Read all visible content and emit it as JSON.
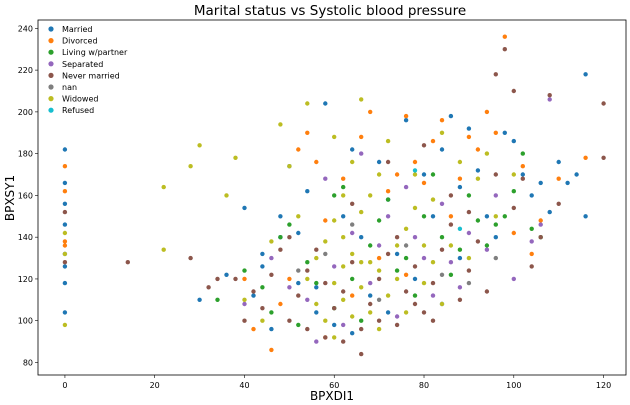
{
  "chart_data": {
    "type": "scatter",
    "title": "Marital status vs Systolic blood pressure",
    "xlabel": "BPXDI1",
    "ylabel": "BPXSY1",
    "xlim": [
      -6,
      125
    ],
    "ylim": [
      74,
      244
    ],
    "xticks": [
      0,
      20,
      40,
      60,
      80,
      100,
      120
    ],
    "yticks": [
      80,
      100,
      120,
      140,
      160,
      180,
      200,
      220,
      240
    ],
    "grid": false,
    "legend_position": "top-left",
    "series": [
      {
        "name": "Married",
        "color": "#1f77b4",
        "points": [
          [
            0,
            182
          ],
          [
            0,
            166
          ],
          [
            0,
            156
          ],
          [
            0,
            146
          ],
          [
            0,
            132
          ],
          [
            0,
            126
          ],
          [
            0,
            118
          ],
          [
            0,
            104
          ],
          [
            30,
            110
          ],
          [
            36,
            122
          ],
          [
            40,
            154
          ],
          [
            42,
            112
          ],
          [
            44,
            132
          ],
          [
            46,
            96
          ],
          [
            48,
            150
          ],
          [
            50,
            174
          ],
          [
            52,
            118
          ],
          [
            54,
            162
          ],
          [
            56,
            104
          ],
          [
            58,
            204
          ],
          [
            60,
            98
          ],
          [
            62,
            150
          ],
          [
            64,
            182
          ],
          [
            66,
            140
          ],
          [
            68,
            112
          ],
          [
            70,
            176
          ],
          [
            72,
            158
          ],
          [
            74,
            132
          ],
          [
            76,
            196
          ],
          [
            78,
            120
          ],
          [
            80,
            170
          ],
          [
            82,
            150
          ],
          [
            84,
            182
          ],
          [
            86,
            198
          ],
          [
            88,
            164
          ],
          [
            90,
            192
          ],
          [
            92,
            172
          ],
          [
            94,
            150
          ],
          [
            96,
            140
          ],
          [
            98,
            190
          ],
          [
            100,
            186
          ],
          [
            102,
            170
          ],
          [
            104,
            160
          ],
          [
            106,
            166
          ],
          [
            108,
            152
          ],
          [
            110,
            176
          ],
          [
            112,
            166
          ],
          [
            114,
            170
          ],
          [
            116,
            218
          ],
          [
            116,
            150
          ],
          [
            88,
            130
          ],
          [
            84,
            108
          ],
          [
            72,
            104
          ],
          [
            64,
            94
          ],
          [
            56,
            116
          ],
          [
            48,
            140
          ],
          [
            44,
            126
          ],
          [
            52,
            142
          ]
        ]
      },
      {
        "name": "Divorced",
        "color": "#ff7f0e",
        "points": [
          [
            0,
            174
          ],
          [
            0,
            162
          ],
          [
            0,
            138
          ],
          [
            0,
            136
          ],
          [
            40,
            120
          ],
          [
            42,
            96
          ],
          [
            46,
            86
          ],
          [
            50,
            120
          ],
          [
            52,
            182
          ],
          [
            54,
            190
          ],
          [
            56,
            176
          ],
          [
            58,
            148
          ],
          [
            62,
            168
          ],
          [
            66,
            188
          ],
          [
            68,
            200
          ],
          [
            72,
            162
          ],
          [
            74,
            170
          ],
          [
            76,
            198
          ],
          [
            78,
            176
          ],
          [
            80,
            166
          ],
          [
            82,
            186
          ],
          [
            84,
            196
          ],
          [
            86,
            150
          ],
          [
            88,
            168
          ],
          [
            90,
            188
          ],
          [
            92,
            182
          ],
          [
            94,
            200
          ],
          [
            96,
            190
          ],
          [
            98,
            236
          ],
          [
            100,
            142
          ],
          [
            102,
            174
          ],
          [
            104,
            132
          ],
          [
            106,
            148
          ],
          [
            110,
            168
          ],
          [
            116,
            178
          ],
          [
            64,
            112
          ],
          [
            70,
            130
          ],
          [
            58,
            92
          ],
          [
            48,
            108
          ],
          [
            76,
            122
          ]
        ]
      },
      {
        "name": "Living w/partner",
        "color": "#2ca02c",
        "points": [
          [
            34,
            110
          ],
          [
            40,
            124
          ],
          [
            44,
            116
          ],
          [
            48,
            140
          ],
          [
            50,
            146
          ],
          [
            54,
            128
          ],
          [
            56,
            118
          ],
          [
            60,
            160
          ],
          [
            62,
            164
          ],
          [
            64,
            120
          ],
          [
            68,
            136
          ],
          [
            70,
            148
          ],
          [
            72,
            158
          ],
          [
            74,
            124
          ],
          [
            76,
            130
          ],
          [
            78,
            112
          ],
          [
            80,
            150
          ],
          [
            82,
            170
          ],
          [
            84,
            140
          ],
          [
            86,
            122
          ],
          [
            88,
            134
          ],
          [
            90,
            160
          ],
          [
            92,
            148
          ],
          [
            94,
            136
          ],
          [
            96,
            146
          ],
          [
            98,
            150
          ],
          [
            100,
            162
          ],
          [
            102,
            180
          ],
          [
            104,
            144
          ],
          [
            106,
            140
          ],
          [
            60,
            106
          ],
          [
            66,
            100
          ],
          [
            52,
            98
          ],
          [
            46,
            104
          ]
        ]
      },
      {
        "name": "Separated",
        "color": "#9467bd",
        "points": [
          [
            40,
            108
          ],
          [
            46,
            130
          ],
          [
            50,
            116
          ],
          [
            54,
            110
          ],
          [
            56,
            90
          ],
          [
            58,
            168
          ],
          [
            60,
            126
          ],
          [
            62,
            98
          ],
          [
            64,
            142
          ],
          [
            66,
            180
          ],
          [
            68,
            118
          ],
          [
            70,
            136
          ],
          [
            72,
            150
          ],
          [
            74,
            102
          ],
          [
            76,
            164
          ],
          [
            78,
            140
          ],
          [
            80,
            130
          ],
          [
            82,
            112
          ],
          [
            84,
            156
          ],
          [
            86,
            128
          ],
          [
            88,
            116
          ],
          [
            90,
            142
          ],
          [
            94,
            134
          ],
          [
            96,
            160
          ],
          [
            100,
            120
          ],
          [
            104,
            138
          ],
          [
            106,
            146
          ],
          [
            108,
            206
          ]
        ]
      },
      {
        "name": "Never married",
        "color": "#8c564b",
        "points": [
          [
            0,
            152
          ],
          [
            0,
            128
          ],
          [
            14,
            128
          ],
          [
            28,
            130
          ],
          [
            32,
            116
          ],
          [
            34,
            120
          ],
          [
            38,
            120
          ],
          [
            40,
            100
          ],
          [
            42,
            114
          ],
          [
            44,
            106
          ],
          [
            46,
            122
          ],
          [
            48,
            134
          ],
          [
            50,
            100
          ],
          [
            52,
            112
          ],
          [
            54,
            124
          ],
          [
            56,
            134
          ],
          [
            58,
            92
          ],
          [
            60,
            106
          ],
          [
            62,
            114
          ],
          [
            64,
            128
          ],
          [
            66,
            96
          ],
          [
            68,
            108
          ],
          [
            70,
            120
          ],
          [
            72,
            132
          ],
          [
            74,
            140
          ],
          [
            76,
            114
          ],
          [
            78,
            126
          ],
          [
            80,
            104
          ],
          [
            82,
            118
          ],
          [
            84,
            134
          ],
          [
            86,
            146
          ],
          [
            88,
            110
          ],
          [
            90,
            124
          ],
          [
            92,
            138
          ],
          [
            94,
            114
          ],
          [
            96,
            218
          ],
          [
            98,
            230
          ],
          [
            100,
            154
          ],
          [
            102,
            168
          ],
          [
            104,
            126
          ],
          [
            106,
            140
          ],
          [
            108,
            208
          ],
          [
            110,
            156
          ],
          [
            120,
            178
          ],
          [
            120,
            204
          ],
          [
            62,
            90
          ],
          [
            66,
            84
          ],
          [
            70,
            100
          ],
          [
            74,
            98
          ],
          [
            78,
            108
          ],
          [
            82,
            100
          ],
          [
            86,
            160
          ],
          [
            90,
            152
          ],
          [
            96,
            170
          ],
          [
            100,
            210
          ],
          [
            58,
            118
          ],
          [
            54,
            96
          ],
          [
            50,
            140
          ],
          [
            64,
            156
          ],
          [
            72,
            176
          ],
          [
            80,
            184
          ]
        ]
      },
      {
        "name": "nan",
        "color": "#7f7f7f",
        "points": [
          [
            52,
            124
          ],
          [
            58,
            132
          ],
          [
            64,
            146
          ],
          [
            70,
            110
          ],
          [
            76,
            136
          ],
          [
            84,
            122
          ],
          [
            90,
            118
          ],
          [
            96,
            130
          ]
        ]
      },
      {
        "name": "Widowed",
        "color": "#bcbd22",
        "points": [
          [
            0,
            98
          ],
          [
            0,
            142
          ],
          [
            0,
            132
          ],
          [
            22,
            164
          ],
          [
            22,
            134
          ],
          [
            28,
            174
          ],
          [
            30,
            184
          ],
          [
            36,
            160
          ],
          [
            38,
            178
          ],
          [
            40,
            110
          ],
          [
            44,
            100
          ],
          [
            46,
            138
          ],
          [
            48,
            194
          ],
          [
            50,
            174
          ],
          [
            52,
            150
          ],
          [
            54,
            204
          ],
          [
            56,
            130
          ],
          [
            58,
            100
          ],
          [
            60,
            188
          ],
          [
            62,
            140
          ],
          [
            64,
            176
          ],
          [
            66,
            206
          ],
          [
            68,
            160
          ],
          [
            70,
            124
          ],
          [
            72,
            186
          ],
          [
            74,
            120
          ],
          [
            76,
            144
          ],
          [
            78,
            170
          ],
          [
            80,
            136
          ],
          [
            82,
            158
          ],
          [
            84,
            190
          ],
          [
            86,
            136
          ],
          [
            88,
            176
          ],
          [
            90,
            130
          ],
          [
            92,
            168
          ],
          [
            94,
            180
          ],
          [
            96,
            150
          ],
          [
            100,
            170
          ],
          [
            60,
            92
          ],
          [
            62,
            110
          ],
          [
            64,
            102
          ],
          [
            66,
            116
          ],
          [
            68,
            128
          ],
          [
            56,
            108
          ],
          [
            54,
            120
          ],
          [
            58,
            138
          ],
          [
            60,
            148
          ],
          [
            62,
            126
          ],
          [
            64,
            132
          ],
          [
            66,
            152
          ],
          [
            68,
            104
          ],
          [
            70,
            96
          ],
          [
            72,
            112
          ],
          [
            74,
            136
          ],
          [
            76,
            104
          ],
          [
            78,
            154
          ],
          [
            80,
            118
          ],
          [
            82,
            128
          ],
          [
            84,
            108
          ],
          [
            60,
            118
          ],
          [
            62,
            160
          ],
          [
            66,
            128
          ],
          [
            70,
            170
          ]
        ]
      },
      {
        "name": "Refused",
        "color": "#17becf",
        "points": [
          [
            78,
            172
          ],
          [
            88,
            144
          ]
        ]
      }
    ]
  }
}
